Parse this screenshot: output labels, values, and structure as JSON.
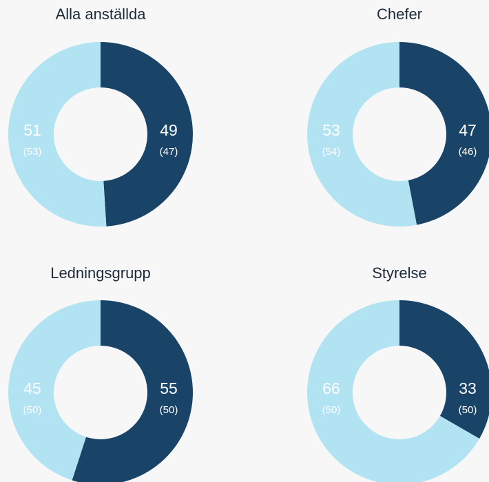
{
  "chart_data": [
    {
      "type": "pie",
      "donut": true,
      "title": "Alla anställda",
      "values": [
        49,
        51
      ],
      "previous_labels": [
        "(47)",
        "(53)"
      ],
      "colors": [
        "#1a4467",
        "#b2e3f2"
      ]
    },
    {
      "type": "pie",
      "donut": true,
      "title": "Chefer",
      "values": [
        47,
        53
      ],
      "previous_labels": [
        "(46)",
        "(54)"
      ],
      "colors": [
        "#1a4467",
        "#b2e3f2"
      ]
    },
    {
      "type": "pie",
      "donut": true,
      "title": "Ledningsgrupp",
      "values": [
        55,
        45
      ],
      "previous_labels": [
        "(50)",
        "(50)"
      ],
      "colors": [
        "#1a4467",
        "#b2e3f2"
      ]
    },
    {
      "type": "pie",
      "donut": true,
      "title": "Styrelse",
      "values": [
        33,
        66
      ],
      "previous_labels": [
        "(50)",
        "(50)"
      ],
      "colors": [
        "#1a4467",
        "#b2e3f2"
      ]
    }
  ]
}
